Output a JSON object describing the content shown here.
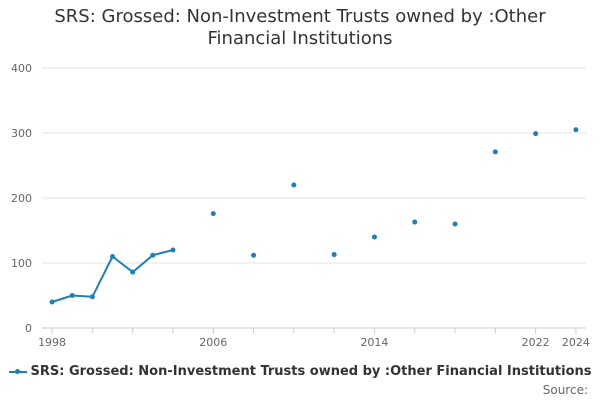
{
  "chart_data": {
    "type": "line",
    "title": "SRS: Grossed: Non-Investment Trusts owned by :Other Financial Institutions",
    "title_lines": [
      "SRS: Grossed: Non-Investment Trusts owned by :Other",
      "Financial Institutions"
    ],
    "xlabel": "",
    "ylabel": "",
    "xlim": [
      1997.5,
      2024.5
    ],
    "ylim": [
      0,
      400
    ],
    "x_ticks": [
      1998,
      2006,
      2014,
      2022,
      2024
    ],
    "y_ticks": [
      0,
      100,
      200,
      300,
      400
    ],
    "grid": "horizontal",
    "legend_position": "bottom",
    "series": [
      {
        "name": "SRS: Grossed: Non-Investment Trusts owned by :Other Financial Institutions",
        "color": "#1f7fb8",
        "x": [
          1998,
          1999,
          2000,
          2001,
          2002,
          2003,
          2004,
          2006,
          2008,
          2010,
          2012,
          2014,
          2016,
          2018,
          2020,
          2022,
          2024
        ],
        "y": [
          40,
          50,
          48,
          110,
          86,
          112,
          120,
          176,
          112,
          220,
          113,
          140,
          163,
          160,
          271,
          299,
          305
        ]
      }
    ]
  },
  "legend": {
    "label": "SRS: Grossed: Non-Investment Trusts owned by :Other Financial Institutions"
  },
  "footer": {
    "source_label": "Source:"
  }
}
